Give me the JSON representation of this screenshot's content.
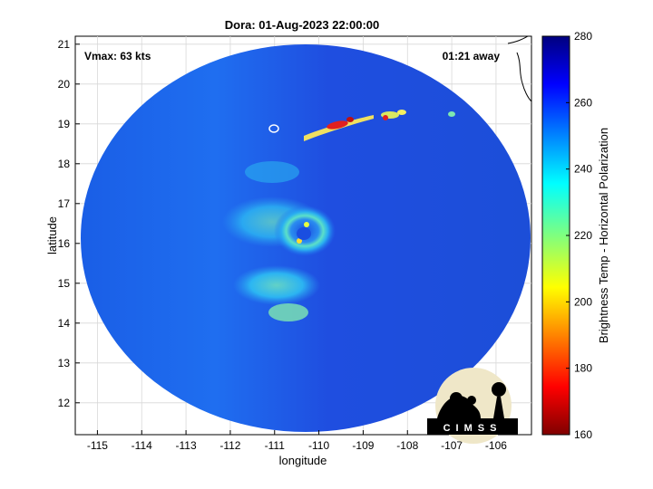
{
  "chart_data": {
    "type": "heatmap",
    "title": "Dora: 01-Aug-2023 22:00:00",
    "xlabel": "longitude",
    "ylabel": "latitude",
    "xlim": [
      -115.5,
      -105.2
    ],
    "ylim": [
      11.2,
      21.2
    ],
    "xticks": [
      -115,
      -114,
      -113,
      -112,
      -111,
      -110,
      -109,
      -108,
      -107,
      -106
    ],
    "yticks": [
      12,
      13,
      14,
      15,
      16,
      17,
      18,
      19,
      20,
      21
    ],
    "xtick_labels": [
      "-115",
      "-114",
      "-113",
      "-112",
      "-111",
      "-110",
      "-109",
      "-108",
      "-107",
      "-106"
    ],
    "ytick_labels": [
      "12",
      "13",
      "14",
      "15",
      "16",
      "17",
      "18",
      "19",
      "20",
      "21"
    ],
    "colorbar": {
      "label": "Brightness Temp - Horizontal Polarization",
      "range": [
        160,
        280
      ],
      "ticks": [
        160,
        180,
        200,
        220,
        240,
        260,
        280
      ],
      "tick_labels": [
        "160",
        "180",
        "200",
        "220",
        "240",
        "260",
        "280"
      ],
      "colormap": "jet"
    },
    "grid": true,
    "storm_center": {
      "lon": -110.1,
      "lat": 16.2
    },
    "annotations": {
      "vmax": "Vmax: 63 kts",
      "time_away": "01:21 away"
    }
  },
  "logo": {
    "text": "CIMSS"
  }
}
